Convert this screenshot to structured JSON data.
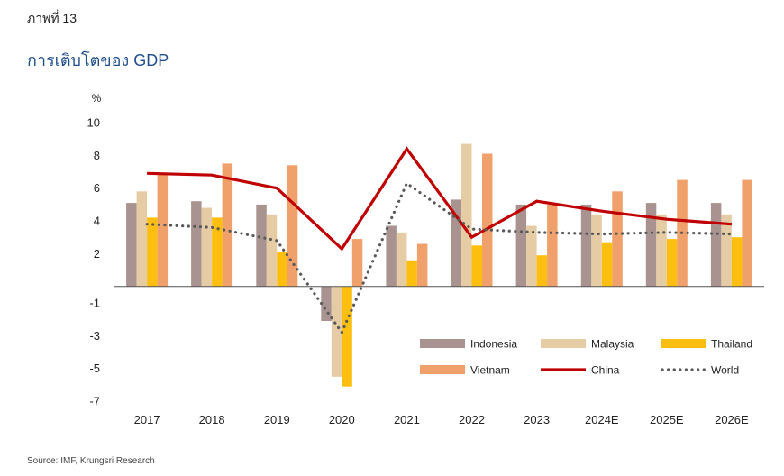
{
  "header": {
    "figure_label": "ภาพที่ 13",
    "title": "การเติบโตของ GDP"
  },
  "footer": {
    "source": "Source: IMF, Krungsri Research"
  },
  "chart_data": {
    "type": "bar",
    "title": "การเติบโตของ GDP",
    "ylabel": "%",
    "categories": [
      "2017",
      "2018",
      "2019",
      "2020",
      "2021",
      "2022",
      "2023",
      "2024E",
      "2025E",
      "2026E"
    ],
    "y_tick_labels": [
      "10",
      "8",
      "6",
      "4",
      "2",
      "-1",
      "-3",
      "-5",
      "-7"
    ],
    "ylim": [
      -7,
      10
    ],
    "grid": false,
    "legend_position": "bottom-right",
    "series": [
      {
        "name": "Indonesia",
        "kind": "bar",
        "color": "#a89390",
        "values": [
          5.1,
          5.2,
          5.0,
          -2.1,
          3.7,
          5.3,
          5.0,
          5.0,
          5.1,
          5.1
        ]
      },
      {
        "name": "Malaysia",
        "kind": "bar",
        "color": "#e5cca5",
        "values": [
          5.8,
          4.8,
          4.4,
          -5.5,
          3.3,
          8.7,
          3.7,
          4.4,
          4.4,
          4.4
        ]
      },
      {
        "name": "Thailand",
        "kind": "bar",
        "color": "#fdbf0f",
        "values": [
          4.2,
          4.2,
          2.1,
          -6.1,
          1.6,
          2.5,
          1.9,
          2.7,
          2.9,
          3.0
        ]
      },
      {
        "name": "Vietnam",
        "kind": "bar",
        "color": "#f0a06a",
        "values": [
          6.9,
          7.5,
          7.4,
          2.9,
          2.6,
          8.1,
          5.0,
          5.8,
          6.5,
          6.5
        ]
      },
      {
        "name": "China",
        "kind": "line",
        "style": "solid",
        "color": "#c00000",
        "values": [
          6.9,
          6.8,
          6.0,
          2.3,
          8.4,
          3.0,
          5.2,
          4.6,
          4.1,
          3.8
        ]
      },
      {
        "name": "World",
        "kind": "line",
        "style": "dotted",
        "color": "#595959",
        "values": [
          3.8,
          3.6,
          2.8,
          -2.8,
          6.3,
          3.5,
          3.3,
          3.2,
          3.3,
          3.2
        ]
      }
    ]
  }
}
